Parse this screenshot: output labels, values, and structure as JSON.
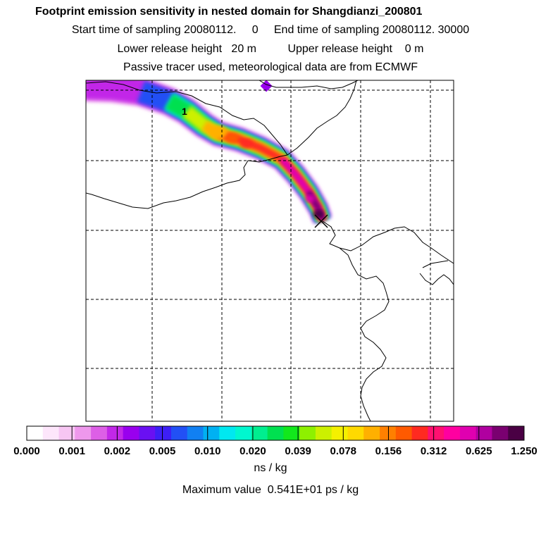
{
  "title": "Footprint emission sensitivity in nested domain for Shangdianzi_200801",
  "sampling": {
    "start_label": "Start time of sampling",
    "start_value": "20080112.",
    "start_extra": "0",
    "end_label": "End time of sampling",
    "end_value": "20080112. 30000"
  },
  "release": {
    "lower_label": "Lower release height",
    "lower_value": "20 m",
    "upper_label": "Upper release height",
    "upper_value": "0 m"
  },
  "info_line": "Passive tracer used, meteorological data are from ECMWF",
  "units": "ns / kg",
  "max_value_text": "Maximum value  0.541E+01 ps / kg",
  "contour_label": "1",
  "colors": {
    "scale": [
      "#ffffff",
      "#fde6fb",
      "#f7c6f3",
      "#ee98ec",
      "#dd5fe6",
      "#c228e8",
      "#9900ee",
      "#6a10f2",
      "#3d1ff6",
      "#2250f5",
      "#1180f2",
      "#00b1f2",
      "#00e8f0",
      "#00f7cf",
      "#00ee90",
      "#00e050",
      "#12e81c",
      "#8ef000",
      "#ccf000",
      "#f4f000",
      "#ffd900",
      "#ffb000",
      "#ff8000",
      "#ff5a00",
      "#ff2a20",
      "#ff1070",
      "#ff00a0",
      "#e000b0",
      "#b000a0",
      "#7a0070",
      "#4a0044"
    ]
  },
  "chart_data": {
    "type": "heatmap",
    "title": "Footprint emission sensitivity in nested domain for Shangdianzi_200801",
    "colorbar": {
      "tick_labels": [
        "0.000",
        "0.001",
        "0.002",
        "0.005",
        "0.010",
        "0.020",
        "0.039",
        "0.078",
        "0.156",
        "0.312",
        "0.625",
        "1.250"
      ],
      "units": "ns / kg"
    },
    "grid": "dashed",
    "receptor": "Shangdianzi",
    "max_value_ps_per_kg": 5.41
  }
}
